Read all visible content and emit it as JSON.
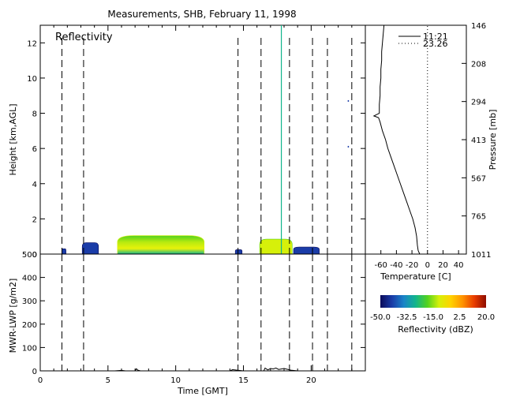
{
  "chart_data": [
    {
      "type": "heatmap",
      "title": "Measurements, SHB, February 11, 1998",
      "panel_label": "Reflectivity",
      "xlabel": "",
      "ylabel": "Height [km,AGL]",
      "xlim": [
        0,
        24
      ],
      "ylim": [
        0,
        13
      ],
      "yticks": [
        0,
        2,
        4,
        6,
        8,
        10,
        12
      ],
      "dashed_times": [
        1.6,
        3.2,
        14.6,
        16.3,
        18.4,
        20.1,
        21.2,
        23.0
      ],
      "echo_regions": [
        {
          "t0": 1.6,
          "t1": 1.9,
          "top": 0.3,
          "dbz": -40
        },
        {
          "t0": 3.1,
          "t1": 4.3,
          "top": 0.65,
          "dbz": -45
        },
        {
          "t0": 5.7,
          "t1": 12.1,
          "top": 1.05,
          "dbz": -5
        },
        {
          "t0": 14.4,
          "t1": 14.9,
          "top": 0.25,
          "dbz": -40
        },
        {
          "t0": 16.2,
          "t1": 18.6,
          "top": 0.85,
          "dbz": -12
        },
        {
          "t0": 18.7,
          "t1": 20.6,
          "top": 0.4,
          "dbz": -42
        }
      ],
      "vertical_streaks": [
        {
          "t": 17.8,
          "h0": 0,
          "h1": 13,
          "dbz": -25
        }
      ],
      "specks": [
        {
          "t": 22.7,
          "h": 8.7
        },
        {
          "t": 22.7,
          "h": 6.1
        }
      ]
    },
    {
      "type": "line",
      "xlabel": "Temperature [C]",
      "ylabel": "Pressure [mb]",
      "xlim": [
        -80,
        50
      ],
      "xticks": [
        -60,
        -40,
        -20,
        0,
        20,
        40
      ],
      "pressure_ticks": [
        146,
        208,
        294,
        413,
        567,
        765,
        1011
      ],
      "series": [
        {
          "name": "11:21",
          "style": "solid",
          "height_km": [
            0,
            0.2,
            0.5,
            1,
            1.5,
            2,
            2.5,
            3,
            3.5,
            4,
            4.5,
            5,
            5.5,
            6,
            6.5,
            7,
            7.5,
            7.75,
            7.85,
            8,
            8.5,
            9,
            9.5,
            10,
            10.5,
            11,
            11.5,
            12,
            12.5,
            13
          ],
          "temperature_c": [
            -10,
            -12,
            -13,
            -14,
            -16,
            -19,
            -23,
            -27,
            -31,
            -35,
            -39,
            -43,
            -47,
            -51,
            -54,
            -58,
            -61,
            -63,
            -69,
            -62,
            -62,
            -61,
            -61,
            -60,
            -60,
            -59,
            -59,
            -58,
            -57,
            -56
          ]
        },
        {
          "name": "23.26",
          "style": "dotted",
          "height_km": [
            0,
            13
          ],
          "temperature_c": [
            0,
            0
          ]
        }
      ]
    },
    {
      "type": "line",
      "xlabel": "Time [GMT]",
      "ylabel": "MWR-LWP [g/m2]",
      "xlim": [
        0,
        24
      ],
      "ylim": [
        0,
        500
      ],
      "xticks": [
        0,
        5,
        10,
        15,
        20
      ],
      "yticks": [
        0,
        100,
        200,
        300,
        400,
        500
      ],
      "dashed_times": [
        1.6,
        3.2,
        14.6,
        16.3,
        18.4,
        20.1,
        21.2,
        23.0
      ],
      "series": [
        {
          "name": "",
          "x": [
            0,
            5.5,
            6.0,
            6.3,
            7.0,
            7.1,
            7.2,
            7.4,
            8.0,
            10.0,
            14.0,
            14.2,
            15.0,
            16.5,
            16.6,
            16.8,
            17.0,
            17.2,
            17.4,
            17.6,
            18.0,
            18.5,
            19.0,
            20.0,
            21.0,
            22.0,
            24.0
          ],
          "y": [
            0,
            0,
            2,
            0,
            0,
            9,
            3,
            0,
            0,
            0,
            0,
            5,
            0,
            0,
            12,
            4,
            10,
            8,
            12,
            6,
            10,
            3,
            0,
            0,
            0,
            0,
            0
          ]
        }
      ]
    },
    {
      "type": "heatmap",
      "legend_type": "colorbar",
      "label": "Reflectivity (dBZ)",
      "range": [
        -50,
        20
      ],
      "ticks": [
        "-50.0",
        "-32.5",
        "-15.0",
        "2.5",
        "20.0"
      ],
      "colors": [
        "#0b0b5a",
        "#1a3ca8",
        "#1a84c8",
        "#12b58c",
        "#52d21f",
        "#d6f00a",
        "#ffd200",
        "#ff9300",
        "#e83c00",
        "#8e0c00"
      ]
    }
  ]
}
